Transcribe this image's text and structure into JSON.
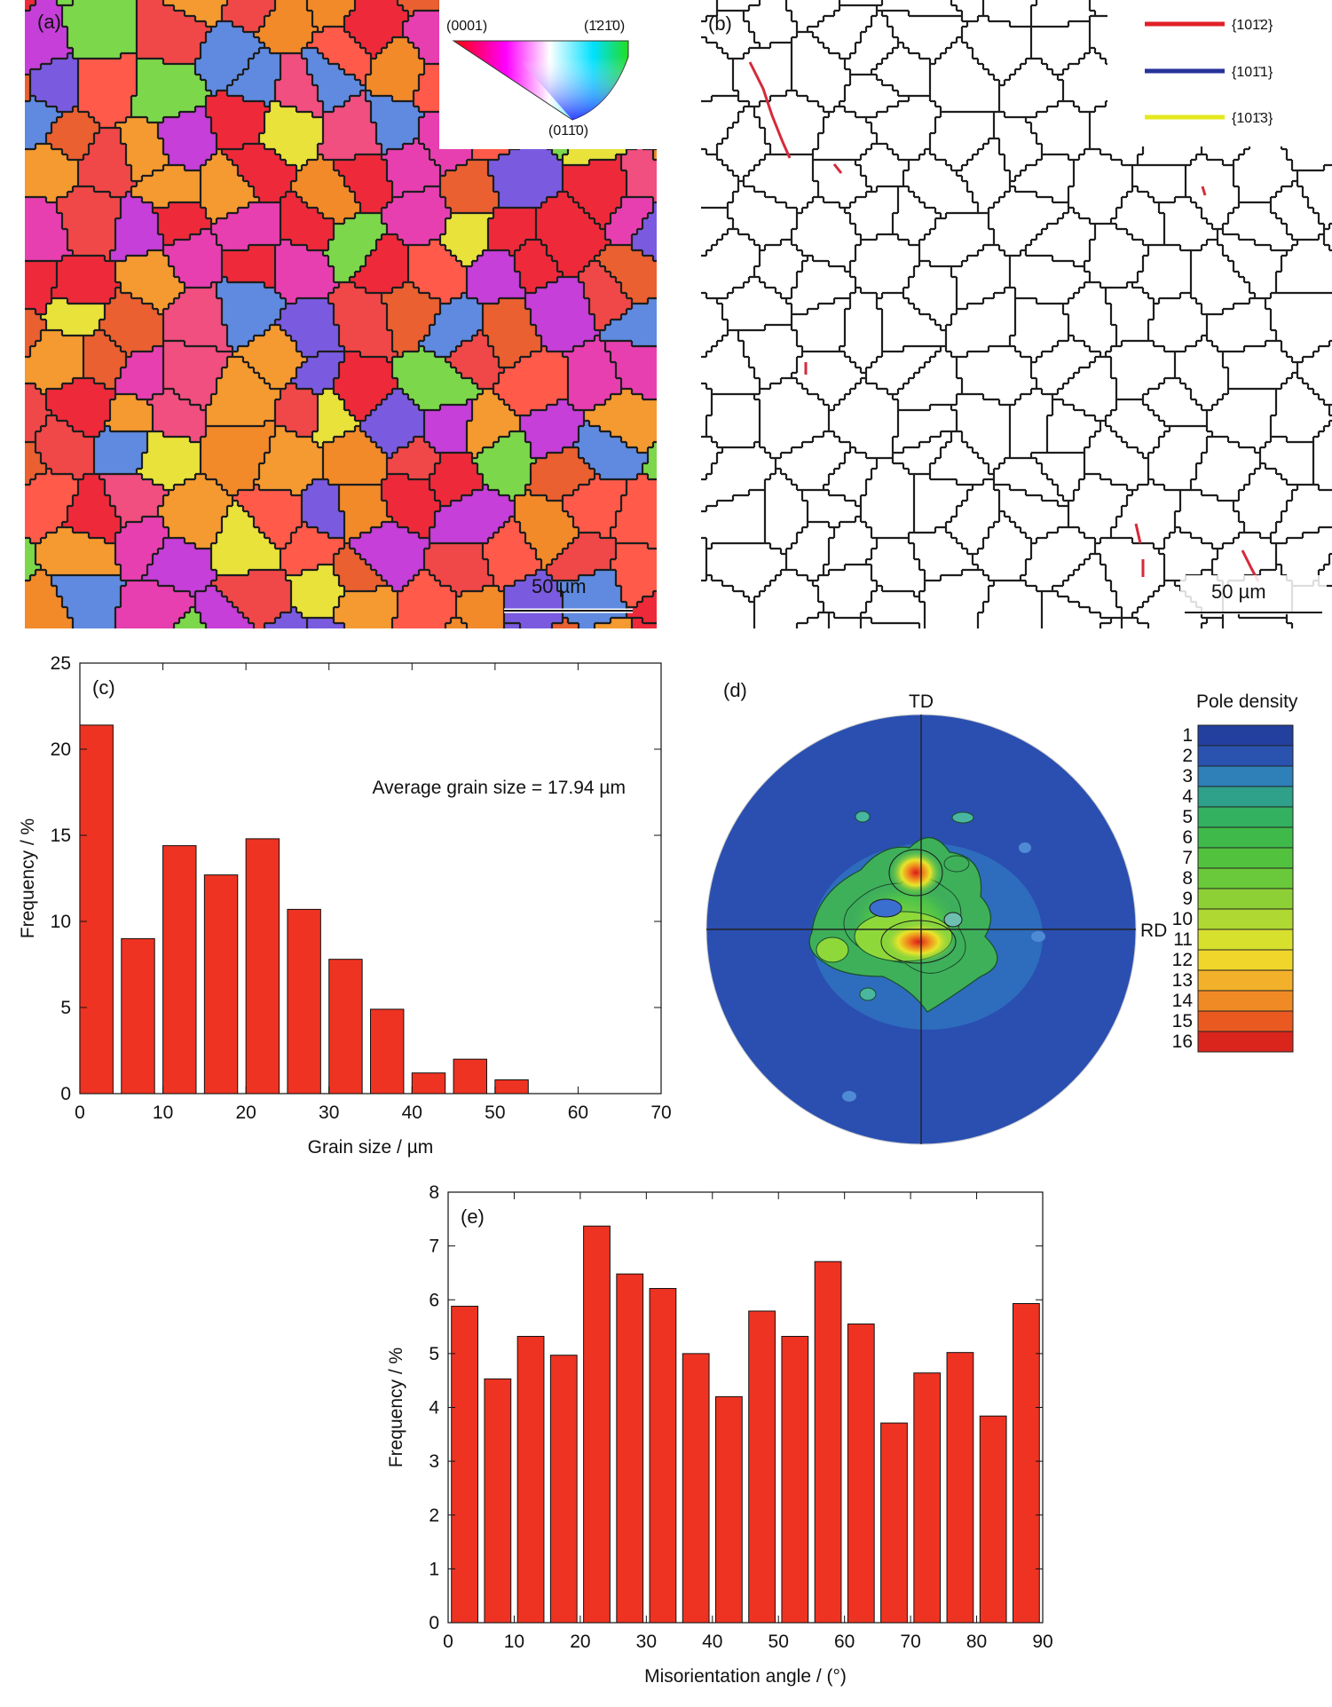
{
  "panels": {
    "a": {
      "label": "(a)",
      "scale_bar": "50 µm",
      "ipf_key": {
        "corner_top_left": "(0001)",
        "corner_top_right": "(1̄21̄0)",
        "corner_bottom": "(011̄0)"
      }
    },
    "b": {
      "label": "(b)",
      "scale_bar": "50 µm",
      "legend": [
        {
          "label": "{101̄2}",
          "color": "#e0202a"
        },
        {
          "label": "{101̄1}",
          "color": "#27339a"
        },
        {
          "label": "{101̄3}",
          "color": "#e5e81e"
        }
      ]
    },
    "d": {
      "label": "(d)",
      "td": "TD",
      "rd": "RD",
      "colorbar_title": "Pole density",
      "levels": [
        "1",
        "2",
        "3",
        "4",
        "5",
        "6",
        "7",
        "8",
        "9",
        "10",
        "11",
        "12",
        "13",
        "14",
        "15",
        "16"
      ]
    }
  },
  "chart_data": [
    {
      "id": "c",
      "type": "bar",
      "panel_label": "(c)",
      "annotation": "Average grain size = 17.94 µm",
      "xlabel": "Grain size / µm",
      "ylabel": "Frequency / %",
      "xlim": [
        0,
        70
      ],
      "ylim": [
        0,
        25
      ],
      "xticks": [
        0,
        10,
        20,
        30,
        40,
        50,
        60,
        70
      ],
      "yticks": [
        0,
        5,
        10,
        15,
        20,
        25
      ],
      "bar_width": 4,
      "x": [
        2,
        7,
        12,
        17,
        22,
        27,
        32,
        37,
        42,
        47,
        52
      ],
      "values": [
        21.4,
        9.0,
        14.4,
        12.7,
        14.8,
        10.7,
        7.8,
        4.9,
        1.2,
        2.0,
        0.8
      ],
      "color": "#ee3322"
    },
    {
      "id": "e",
      "type": "bar",
      "panel_label": "(e)",
      "xlabel": "Misorientation angle / (°)",
      "ylabel": "Frequency / %",
      "xlim": [
        0,
        90
      ],
      "ylim": [
        0,
        8
      ],
      "xticks": [
        0,
        10,
        20,
        30,
        40,
        50,
        60,
        70,
        80,
        90
      ],
      "yticks": [
        0,
        1,
        2,
        3,
        4,
        5,
        6,
        7,
        8
      ],
      "bar_width": 4,
      "x": [
        2.5,
        7.5,
        12.5,
        17.5,
        22.5,
        27.5,
        32.5,
        37.5,
        42.5,
        47.5,
        52.5,
        57.5,
        62.5,
        67.5,
        72.5,
        77.5,
        82.5,
        87.5
      ],
      "values": [
        5.88,
        4.53,
        5.32,
        4.97,
        7.37,
        6.48,
        6.21,
        5.0,
        4.2,
        5.79,
        5.32,
        6.71,
        5.55,
        3.71,
        4.64,
        5.02,
        3.84,
        5.93
      ],
      "color": "#ee3322"
    }
  ]
}
